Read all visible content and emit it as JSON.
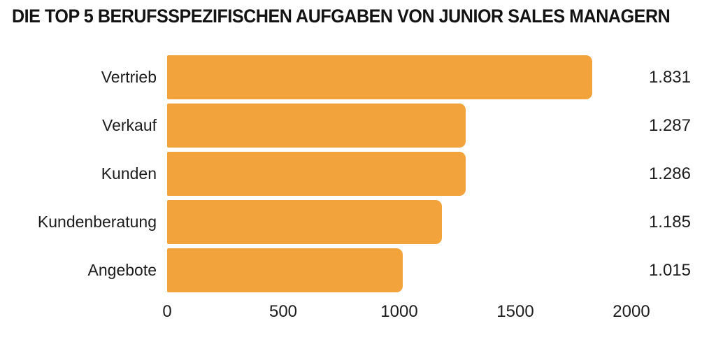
{
  "title": "DIE TOP 5 BERUFSSPEZIFISCHEN AUFGABEN VON JUNIOR SALES MANAGERN",
  "chart_data": {
    "type": "bar",
    "orientation": "horizontal",
    "title": "DIE TOP 5 BERUFSSPEZIFISCHEN AUFGABEN VON JUNIOR SALES MANAGERN",
    "categories": [
      "Vertrieb",
      "Verkauf",
      "Kunden",
      "Kundenberatung",
      "Angebote"
    ],
    "values": [
      1831,
      1287,
      1286,
      1185,
      1015
    ],
    "value_labels": [
      "1.831",
      "1.287",
      "1.286",
      "1.185",
      "1.015"
    ],
    "x_ticks": [
      0,
      500,
      1000,
      1500,
      2000
    ],
    "x_tick_labels": [
      "0",
      "500",
      "1000",
      "1500",
      "2000"
    ],
    "xlim": [
      0,
      2000
    ],
    "xlabel": "",
    "ylabel": "",
    "grid": false,
    "legend": false,
    "bar_color": "#F2A33C",
    "text_color": "#1C1C1C",
    "background_color": "#FFFFFF"
  }
}
